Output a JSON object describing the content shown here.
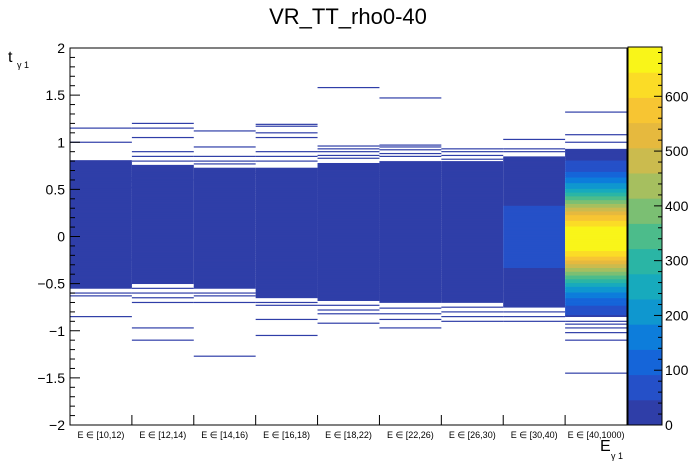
{
  "title": "VR_TT_rho0-40",
  "chart_data": {
    "type": "heatmap",
    "title": "VR_TT_rho0-40",
    "xlabel": "E",
    "xlabel_sub": "γ 1",
    "ylabel": "t",
    "ylabel_sub": "γ 1",
    "ylim": [
      -2,
      2
    ],
    "y_ticks": [
      "−2",
      "−1.5",
      "−1",
      "−0.5",
      "0",
      "0.5",
      "1",
      "1.5",
      "2"
    ],
    "y_tick_values": [
      -2,
      -1.5,
      -1,
      -0.5,
      0,
      0.5,
      1,
      1.5,
      2
    ],
    "categories": [
      "E ∈ [10,12)",
      "E ∈ [12,14)",
      "E ∈ [14,16)",
      "E ∈ [16,18)",
      "E ∈ [18,22)",
      "E ∈ [22,26)",
      "E ∈ [26,30)",
      "E ∈ [30,40)",
      "E ∈ [40,1000)"
    ],
    "colorbar": {
      "zlim": [
        0,
        690
      ],
      "ticks": [
        "0",
        "100",
        "200",
        "300",
        "400",
        "500",
        "600"
      ],
      "tick_values": [
        0,
        100,
        200,
        300,
        400,
        500,
        600
      ],
      "palette": [
        "#2f3ea8",
        "#2550c8",
        "#1565d9",
        "#0d7ddb",
        "#0f97cf",
        "#17aabd",
        "#2ab5a5",
        "#4cbc8b",
        "#7bbf73",
        "#a6bf5f",
        "#cbbb4e",
        "#e6b93e",
        "#f7c533",
        "#fbdc26",
        "#f9f519"
      ]
    },
    "columns": [
      {
        "category": "E ∈ [10,12)",
        "core": [
          -0.55,
          0.8
        ],
        "peak": 1,
        "outliers": [
          1.15,
          1.0,
          0.62,
          0.58,
          0.52,
          -0.25,
          -0.5,
          -0.6,
          -0.63,
          -0.85
        ]
      },
      {
        "category": "E ∈ [12,14)",
        "core": [
          -0.5,
          0.75
        ],
        "peak": 1,
        "outliers": [
          1.2,
          1.15,
          1.05,
          0.9,
          0.85,
          0.8,
          0.6,
          -0.55,
          -0.6,
          -0.65,
          -0.7,
          -0.97,
          -1.1
        ]
      },
      {
        "category": "E ∈ [14,16)",
        "core": [
          -0.55,
          0.73
        ],
        "peak": 2,
        "outliers": [
          1.12,
          0.95,
          0.85,
          0.8,
          0.77,
          -0.6,
          -0.63,
          -0.7,
          -1.27
        ]
      },
      {
        "category": "E ∈ [16,18)",
        "core": [
          -0.65,
          0.72
        ],
        "peak": 2,
        "outliers": [
          1.19,
          1.17,
          1.1,
          1.05,
          0.9,
          0.85,
          0.8,
          0.67,
          -0.7,
          -0.73,
          -0.88,
          -1.05
        ]
      },
      {
        "category": "E ∈ [18,22)",
        "core": [
          -0.68,
          0.78
        ],
        "peak": 10,
        "outliers": [
          1.58,
          0.96,
          0.93,
          0.9,
          0.86,
          0.83,
          -0.73,
          -0.78,
          -0.82,
          -0.92
        ]
      },
      {
        "category": "E ∈ [22,26)",
        "core": [
          -0.7,
          0.8
        ],
        "peak": 20,
        "outliers": [
          1.47,
          0.97,
          0.95,
          0.92,
          0.88,
          0.85,
          -0.76,
          -0.82,
          -0.88,
          -0.97
        ]
      },
      {
        "category": "E ∈ [26,30)",
        "core": [
          -0.7,
          0.8
        ],
        "peak": 10,
        "outliers": [
          0.93,
          0.9,
          0.86,
          0.82,
          -0.58,
          -0.75,
          -0.8,
          -0.85,
          -0.9
        ]
      },
      {
        "category": "E ∈ [30,40)",
        "core": [
          -0.75,
          0.85
        ],
        "peak": 80,
        "outliers": [
          1.03,
          0.93,
          0.9,
          -0.8,
          -0.85,
          -0.9
        ]
      },
      {
        "category": "E ∈ [40,1000)",
        "core": [
          -0.85,
          0.92
        ],
        "peak": 690,
        "outliers": [
          1.32,
          1.08,
          1.0,
          -0.9,
          -0.93,
          -0.97,
          -1.02,
          -1.1,
          -1.45
        ]
      }
    ]
  }
}
